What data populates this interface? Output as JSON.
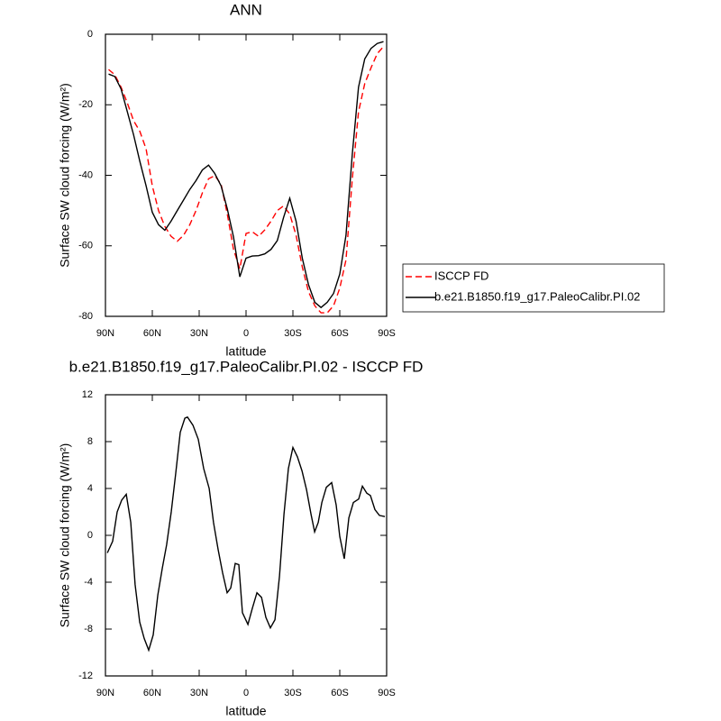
{
  "chart_data": [
    {
      "type": "line",
      "title": "ANN",
      "xlabel": "latitude",
      "ylabel": "Surface SW cloud forcing (W/m²)",
      "x": [
        88,
        84,
        80,
        76,
        72,
        68,
        64,
        60,
        56,
        52,
        48,
        44,
        40,
        36,
        32,
        28,
        24,
        20,
        16,
        12,
        8,
        4,
        0,
        -4,
        -8,
        -12,
        -16,
        -20,
        -24,
        -28,
        -32,
        -36,
        -40,
        -44,
        -48,
        -52,
        -56,
        -60,
        -64,
        -68,
        -72,
        -76,
        -80,
        -84,
        -88
      ],
      "series": [
        {
          "name": "ISCCP FD",
          "color": "#ff0000",
          "line_style": "dashed",
          "values": [
            -10,
            -11.5,
            -15,
            -19.5,
            -24.5,
            -27.5,
            -32.5,
            -43,
            -50,
            -54.5,
            -57.3,
            -58.7,
            -57,
            -54,
            -50,
            -45,
            -41,
            -40.1,
            -42.5,
            -51,
            -61,
            -66.5,
            -56.5,
            -56,
            -57.3,
            -55.5,
            -53,
            -50,
            -48.7,
            -51,
            -57,
            -66,
            -73,
            -77,
            -79,
            -79,
            -77,
            -72,
            -64,
            -41,
            -22,
            -14,
            -9.5,
            -5.5,
            -3.5
          ]
        },
        {
          "name": "b.e21.B1850.f19_g17.PaleoCalibr.PI.02",
          "color": "#000000",
          "line_style": "solid",
          "values": [
            -11.3,
            -12,
            -15.5,
            -22,
            -28.5,
            -36,
            -43,
            -50.5,
            -54,
            -55.6,
            -53,
            -50,
            -47,
            -44,
            -41.5,
            -38.5,
            -37.1,
            -39.5,
            -43,
            -49.5,
            -57.5,
            -68.8,
            -63.5,
            -62.9,
            -62.8,
            -62.3,
            -61,
            -58.5,
            -52,
            -46.5,
            -53,
            -63.5,
            -71,
            -76,
            -77.5,
            -76,
            -73.5,
            -68,
            -57,
            -34,
            -15,
            -7,
            -4,
            -2.6,
            -2.1
          ]
        }
      ],
      "xlim": [
        90,
        -90
      ],
      "xticks": [
        {
          "value": 90,
          "label": "90N"
        },
        {
          "value": 60,
          "label": "60N"
        },
        {
          "value": 30,
          "label": "30N"
        },
        0,
        {
          "value": -30,
          "label": "30S"
        },
        {
          "value": -60,
          "label": "60S"
        },
        {
          "value": -90,
          "label": "90S"
        }
      ],
      "ylim": [
        -80,
        0
      ],
      "yticks": [
        -80,
        -60,
        -40,
        -20,
        0
      ],
      "legend": "right"
    },
    {
      "type": "line",
      "title": "b.e21.B1850.f19_g17.PaleoCalibr.PI.02 - ISCCP FD",
      "xlabel": "latitude",
      "ylabel": "Surface SW cloud forcing (W/m²)",
      "x": [
        88.8,
        85.4,
        82.5,
        79.6,
        76.7,
        73.8,
        71,
        68.1,
        65.2,
        62.3,
        59.4,
        56.5,
        53.6,
        50.8,
        47.9,
        45,
        42.1,
        39.2,
        37.5,
        34,
        30.6,
        27.1,
        23.6,
        20.8,
        17.9,
        15,
        12.1,
        9.8,
        6.9,
        4.6,
        2.3,
        -1.2,
        -4.1,
        -7,
        -9.9,
        -12.7,
        -15.6,
        -18.5,
        -21.4,
        -24.3,
        -27.1,
        -30,
        -32.9,
        -35.8,
        -38.7,
        -41.6,
        -43.9,
        -46.2,
        -48.5,
        -51.4,
        -54.8,
        -57.7,
        -60,
        -62.9,
        -65.8,
        -68.7,
        -72.1,
        -74.5,
        -77.3,
        -79.6,
        -82.5,
        -85.4,
        -88.9
      ],
      "series": [
        {
          "color": "#000000",
          "line_style": "solid",
          "values": [
            -1.5,
            -0.5,
            2,
            3,
            3.5,
            1.1,
            -4.2,
            -7.4,
            -8.8,
            -9.8,
            -8.5,
            -5.1,
            -2.8,
            -0.8,
            2,
            5.3,
            8.8,
            10,
            10.1,
            9.4,
            8.2,
            5.7,
            4,
            1.1,
            -1.2,
            -3.2,
            -4.9,
            -4.5,
            -2.4,
            -2.5,
            -6.6,
            -7.6,
            -6.2,
            -4.9,
            -5.3,
            -7,
            -7.9,
            -7.2,
            -3.5,
            1.8,
            5.7,
            7.5,
            6.7,
            5.5,
            3.9,
            1.8,
            0.3,
            1.1,
            2.8,
            4.1,
            4.5,
            2.6,
            -0.1,
            -2,
            1.5,
            2.8,
            3.1,
            4.2,
            3.6,
            3.4,
            2.2,
            1.7,
            1.6
          ]
        }
      ],
      "xlim": [
        90,
        -90
      ],
      "xticks": [
        {
          "value": 90,
          "label": "90N"
        },
        {
          "value": 60,
          "label": "60N"
        },
        {
          "value": 30,
          "label": "30N"
        },
        0,
        {
          "value": -30,
          "label": "30S"
        },
        {
          "value": -60,
          "label": "60S"
        },
        {
          "value": -90,
          "label": "90S"
        }
      ],
      "ylim": [
        -12,
        12
      ],
      "yticks": [
        -12,
        -8,
        -4,
        0,
        4,
        8,
        12
      ]
    }
  ]
}
